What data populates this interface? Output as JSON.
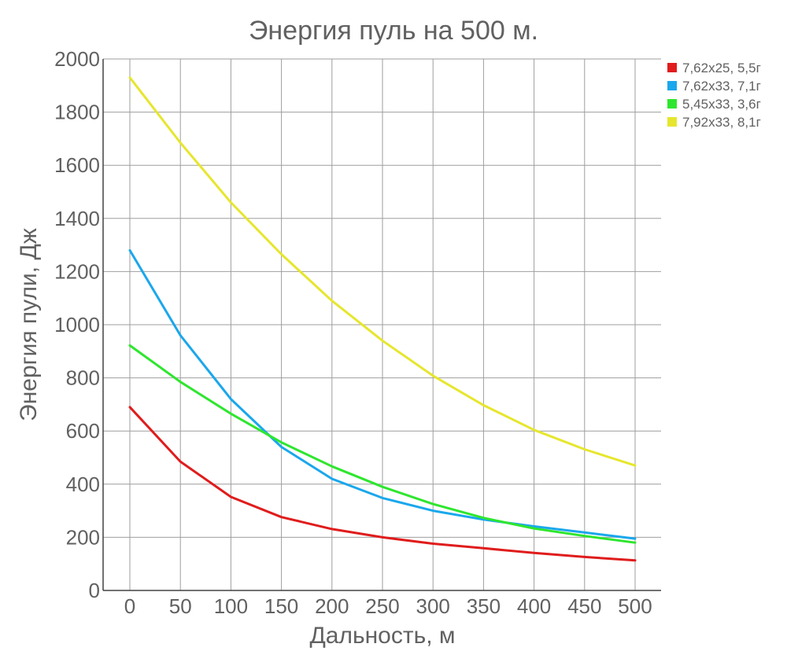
{
  "chart_data": {
    "type": "line",
    "title": "Энергия пуль на 500 м.",
    "xlabel": "Дальность, м",
    "ylabel": "Энергия пули, Дж",
    "x": [
      0,
      50,
      100,
      150,
      200,
      250,
      300,
      350,
      400,
      450,
      500
    ],
    "x_ticks": [
      "0",
      "50",
      "100",
      "150",
      "200",
      "250",
      "300",
      "350",
      "400",
      "450",
      "500"
    ],
    "ylim": [
      0,
      2000
    ],
    "y_ticks": [
      "0",
      "200",
      "400",
      "600",
      "800",
      "1000",
      "1200",
      "1400",
      "1600",
      "1800",
      "2000"
    ],
    "y_tick_values": [
      0,
      200,
      400,
      600,
      800,
      1000,
      1200,
      1400,
      1600,
      1800,
      2000
    ],
    "grid": true,
    "legend_position": "top-right",
    "series": [
      {
        "name": "7,62x25, 5,5г",
        "color": "#e01c1c",
        "values": [
          690,
          485,
          352,
          276,
          231,
          200,
          176,
          159,
          141,
          126,
          113
        ]
      },
      {
        "name": "7,62x33, 7,1г",
        "color": "#1aa7ec",
        "values": [
          1280,
          960,
          720,
          540,
          420,
          348,
          300,
          267,
          241,
          218,
          195
        ]
      },
      {
        "name": "5,45x33, 3,6г",
        "color": "#2ee62e",
        "values": [
          922,
          785,
          665,
          557,
          467,
          390,
          325,
          273,
          233,
          205,
          180
        ]
      },
      {
        "name": "7,92x33, 8,1г",
        "color": "#e6e62e",
        "values": [
          1930,
          1685,
          1460,
          1265,
          1090,
          940,
          808,
          697,
          604,
          531,
          470
        ]
      }
    ]
  }
}
